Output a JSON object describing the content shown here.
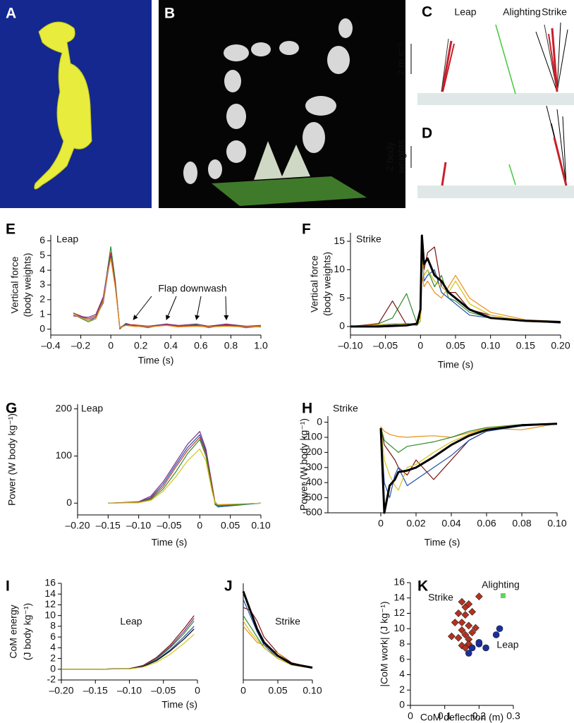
{
  "panels": [
    "A",
    "B",
    "C",
    "D",
    "E",
    "F",
    "G",
    "H",
    "I",
    "J",
    "K"
  ],
  "panel_c": {
    "labels": [
      "Leap",
      "Alighting",
      "Strike"
    ],
    "scale": "2 m s⁻¹"
  },
  "panel_d": {
    "scale": [
      "2 body",
      "weights"
    ]
  },
  "chart_data": [
    {
      "type": "line",
      "title": "Leap",
      "xlabel": "Time (s)",
      "ylabel": [
        "Vertical force",
        "(body weights)"
      ],
      "xlim": [
        -0.4,
        1.0
      ],
      "ylim": [
        -0.4,
        6.4
      ],
      "xticks": [
        {
          "value": -0.4,
          "label": "–0.4"
        },
        {
          "value": -0.2,
          "label": "–0.2"
        },
        0,
        0.2,
        0.4,
        0.6,
        0.8,
        {
          "value": 1.0,
          "label": "1.0"
        }
      ],
      "yticks": [
        0,
        1,
        2,
        3,
        4,
        5,
        6
      ],
      "annotation": {
        "text": "Flap downwash",
        "points": [
          [
            0.15,
            0.45
          ],
          [
            0.37,
            0.45
          ],
          [
            0.57,
            0.45
          ],
          [
            0.77,
            0.45
          ]
        ]
      },
      "x": [
        -0.25,
        -0.15,
        -0.1,
        -0.05,
        -0.02,
        0,
        0.03,
        0.06,
        0.1,
        0.15,
        0.25,
        0.37,
        0.45,
        0.57,
        0.65,
        0.77,
        0.9,
        1.0
      ],
      "series": [
        {
          "color": "#1f4fa8",
          "values": [
            1.1,
            0.6,
            0.8,
            1.8,
            3.8,
            4.9,
            3.0,
            0.1,
            0.35,
            0.2,
            0.15,
            0.3,
            0.15,
            0.25,
            0.15,
            0.25,
            0.15,
            0.2
          ]
        },
        {
          "color": "#2e8b2e",
          "values": [
            1.0,
            0.5,
            0.7,
            2.0,
            4.2,
            5.6,
            3.3,
            0.0,
            0.4,
            0.25,
            0.1,
            0.35,
            0.2,
            0.3,
            0.1,
            0.3,
            0.2,
            0.15
          ]
        },
        {
          "color": "#c0392b",
          "values": [
            1.1,
            0.7,
            0.9,
            2.1,
            4.0,
            5.2,
            3.1,
            0.05,
            0.3,
            0.3,
            0.2,
            0.3,
            0.2,
            0.2,
            0.2,
            0.3,
            0.1,
            0.2
          ]
        },
        {
          "color": "#7b2d8b",
          "values": [
            0.9,
            0.8,
            1.0,
            2.2,
            4.1,
            5.0,
            2.9,
            0.1,
            0.3,
            0.2,
            0.2,
            0.35,
            0.25,
            0.35,
            0.2,
            0.35,
            0.2,
            0.25
          ]
        },
        {
          "color": "#e8901a",
          "values": [
            1.0,
            0.6,
            0.7,
            1.9,
            3.9,
            4.8,
            2.8,
            0.1,
            0.25,
            0.2,
            0.15,
            0.25,
            0.15,
            0.2,
            0.15,
            0.2,
            0.15,
            0.2
          ]
        }
      ]
    },
    {
      "type": "line",
      "title": "Strike",
      "xlabel": "Time (s)",
      "ylabel": [
        "Vertical force",
        "(body weights)"
      ],
      "xlim": [
        -0.1,
        0.2
      ],
      "ylim": [
        -1.5,
        16.5
      ],
      "xticks": [
        {
          "value": -0.1,
          "label": "–0.10"
        },
        {
          "value": -0.05,
          "label": "–0.05"
        },
        0,
        0.05,
        {
          "value": 0.1,
          "label": "0.10"
        },
        0.15,
        {
          "value": 0.2,
          "label": "0.20"
        }
      ],
      "yticks": [
        0,
        5,
        10,
        15
      ],
      "x": [
        -0.1,
        -0.06,
        -0.04,
        -0.02,
        -0.005,
        0,
        0.002,
        0.005,
        0.01,
        0.02,
        0.03,
        0.04,
        0.05,
        0.07,
        0.1,
        0.15,
        0.2
      ],
      "series": [
        {
          "color": "#2e8b2e",
          "values": [
            0,
            0.5,
            1.5,
            5.8,
            0.5,
            2,
            14,
            9,
            10,
            7,
            9,
            5,
            4.5,
            2.5,
            1.5,
            1,
            0.7
          ]
        },
        {
          "color": "#7a1010",
          "values": [
            0,
            0.5,
            4.5,
            0.3,
            0.3,
            2,
            15,
            10,
            13,
            14,
            7,
            6,
            6,
            3,
            2,
            1,
            0.8
          ]
        },
        {
          "color": "#e8901a",
          "values": [
            0,
            0.3,
            0.5,
            0.5,
            0.5,
            1,
            9,
            7,
            8,
            6,
            5,
            7,
            9,
            5,
            2.5,
            1.2,
            0.9
          ]
        },
        {
          "color": "#1f4fa8",
          "values": [
            0,
            0.2,
            0.3,
            0.5,
            0.2,
            1,
            13,
            8,
            9,
            10,
            6,
            5,
            4,
            2,
            1.5,
            1,
            0.6
          ]
        },
        {
          "color": "#d4c21a",
          "values": [
            0,
            0.3,
            0.5,
            0.4,
            0.3,
            1,
            12,
            9,
            10,
            8,
            7,
            6,
            8,
            4,
            2,
            1,
            0.7
          ]
        },
        {
          "color": "#000000",
          "linewidth": 3,
          "values": [
            0,
            0,
            0.1,
            0.2,
            0.5,
            3,
            16,
            11,
            12,
            9,
            8,
            6,
            5,
            3,
            1.5,
            1,
            0.8
          ]
        }
      ]
    },
    {
      "type": "line",
      "title": "Leap",
      "xlabel": "Time (s)",
      "ylabel": [
        "Power (W body kg⁻¹)"
      ],
      "xlim": [
        -0.2,
        0.1
      ],
      "ylim": [
        -25,
        210
      ],
      "xticks": [
        {
          "value": -0.2,
          "label": "–0.20"
        },
        {
          "value": -0.15,
          "label": "–0.15"
        },
        {
          "value": -0.1,
          "label": "–0.10"
        },
        {
          "value": -0.05,
          "label": "–0.05"
        },
        0,
        0.05,
        {
          "value": 0.1,
          "label": "0.10"
        }
      ],
      "yticks": [
        0,
        100,
        200
      ],
      "x": [
        -0.15,
        -0.1,
        -0.08,
        -0.06,
        -0.04,
        -0.02,
        0,
        0.01,
        0.02,
        0.025,
        0.03,
        0.1
      ],
      "series": [
        {
          "color": "#7b2d8b",
          "values": [
            0,
            3,
            15,
            45,
            85,
            125,
            152,
            115,
            40,
            0,
            -5,
            0
          ]
        },
        {
          "color": "#1f4fa8",
          "values": [
            0,
            2,
            12,
            40,
            80,
            118,
            145,
            110,
            35,
            -3,
            -8,
            0
          ]
        },
        {
          "color": "#c0392b",
          "values": [
            0,
            2,
            10,
            35,
            75,
            112,
            140,
            105,
            38,
            2,
            -4,
            0
          ]
        },
        {
          "color": "#2e8b2e",
          "values": [
            0,
            1,
            8,
            30,
            65,
            105,
            135,
            100,
            30,
            -2,
            -6,
            0
          ]
        },
        {
          "color": "#d4c21a",
          "values": [
            0,
            1,
            6,
            25,
            55,
            90,
            115,
            90,
            25,
            0,
            -3,
            0
          ]
        }
      ]
    },
    {
      "type": "line",
      "title": "Strike",
      "xlabel": "Time (s)",
      "ylabel": [
        "Power (W body kg⁻¹)"
      ],
      "xlim": [
        -0.03,
        0.1
      ],
      "ylim": [
        -600,
        40
      ],
      "xticks": [
        0,
        0.02,
        0.04,
        0.06,
        0.08,
        {
          "value": 0.1,
          "label": "0.10"
        }
      ],
      "yticks": [
        0,
        -100,
        -200,
        -300,
        -400,
        -500,
        -600
      ],
      "x": [
        0,
        0.002,
        0.005,
        0.008,
        0.01,
        0.015,
        0.02,
        0.03,
        0.04,
        0.05,
        0.06,
        0.08,
        0.1
      ],
      "series": [
        {
          "color": "#e8901a",
          "values": [
            -30,
            -60,
            -80,
            -90,
            -95,
            -100,
            -95,
            -90,
            -100,
            -70,
            -40,
            -50,
            -10
          ]
        },
        {
          "color": "#7a1010",
          "values": [
            -30,
            -150,
            -200,
            -250,
            -300,
            -350,
            -250,
            -380,
            -250,
            -120,
            -60,
            -20,
            -10
          ]
        },
        {
          "color": "#1f4fa8",
          "values": [
            -30,
            -400,
            -500,
            -350,
            -300,
            -420,
            -380,
            -300,
            -220,
            -120,
            -60,
            -25,
            -10
          ]
        },
        {
          "color": "#2e8b2e",
          "values": [
            -30,
            -120,
            -150,
            -180,
            -200,
            -160,
            -150,
            -130,
            -100,
            -60,
            -35,
            -15,
            -8
          ]
        },
        {
          "color": "#d4c21a",
          "values": [
            -30,
            -250,
            -350,
            -420,
            -450,
            -300,
            -280,
            -200,
            -130,
            -80,
            -40,
            -18,
            -8
          ]
        },
        {
          "color": "#000000",
          "linewidth": 3,
          "values": [
            -40,
            -600,
            -420,
            -380,
            -330,
            -320,
            -300,
            -230,
            -150,
            -90,
            -50,
            -20,
            -10
          ]
        }
      ]
    },
    {
      "type": "line",
      "title": "Leap",
      "xlabel": "Time (s)",
      "ylabel": [
        "CoM energy",
        "(J body kg⁻¹)"
      ],
      "xlim": [
        -0.2,
        0
      ],
      "ylim": [
        -2,
        16
      ],
      "xticks": [
        {
          "value": -0.2,
          "label": "–0.20"
        },
        {
          "value": -0.15,
          "label": "–0.15"
        },
        {
          "value": -0.1,
          "label": "–0.10"
        },
        {
          "value": -0.05,
          "label": "–0.05"
        },
        0
      ],
      "yticks": [
        -2,
        0,
        2,
        4,
        6,
        8,
        10,
        12,
        14,
        16
      ],
      "x": [
        -0.2,
        -0.15,
        -0.1,
        -0.08,
        -0.06,
        -0.04,
        -0.02,
        -0.005
      ],
      "series": [
        {
          "color": "#7a1010",
          "values": [
            0,
            0,
            0.1,
            0.7,
            2.2,
            4.5,
            7.5,
            10
          ]
        },
        {
          "color": "#7b2d8b",
          "values": [
            0,
            0,
            0.1,
            0.6,
            2,
            4.2,
            7,
            9.5
          ]
        },
        {
          "color": "#2e8b2e",
          "values": [
            0,
            0,
            0.1,
            0.5,
            1.9,
            4,
            6.6,
            9
          ]
        },
        {
          "color": "#1f4fa8",
          "values": [
            0,
            0,
            0.1,
            0.5,
            1.7,
            3.6,
            6,
            8
          ]
        },
        {
          "color": "#000000",
          "values": [
            0,
            0,
            0.1,
            0.5,
            1.6,
            3.4,
            5.6,
            7.5
          ]
        },
        {
          "color": "#d4c21a",
          "values": [
            0,
            0,
            0.05,
            0.4,
            1.3,
            2.8,
            4.8,
            6.5
          ]
        }
      ]
    },
    {
      "type": "line",
      "title": "Strike",
      "xlim": [
        0,
        0.1
      ],
      "ylim": [
        -2,
        16
      ],
      "xticks": [
        0,
        0.05,
        {
          "value": 0.1,
          "label": "0.10"
        }
      ],
      "x": [
        0,
        0.01,
        0.02,
        0.03,
        0.05,
        0.07,
        0.1
      ],
      "series": [
        {
          "color": "#7a1010",
          "values": [
            11.5,
            11,
            9,
            6,
            3,
            1.2,
            0.3
          ]
        },
        {
          "color": "#e8901a",
          "values": [
            8,
            6.5,
            5,
            4.5,
            3,
            1,
            0.3
          ]
        },
        {
          "color": "#1f4fa8",
          "values": [
            13,
            10,
            7,
            4.5,
            2,
            0.8,
            0.2
          ]
        },
        {
          "color": "#2e8b2e",
          "values": [
            10,
            8,
            6,
            4,
            2,
            0.8,
            0.2
          ]
        },
        {
          "color": "#d4c21a",
          "values": [
            9,
            7,
            5.5,
            4,
            2,
            0.8,
            0.2
          ]
        },
        {
          "color": "#000000",
          "linewidth": 3,
          "values": [
            14.5,
            11,
            7.5,
            5,
            2.5,
            1,
            0.3
          ]
        }
      ]
    },
    {
      "type": "scatter",
      "xlabel": "CoM deflection (m)",
      "ylabel": [
        "|CoM work| (J kg⁻¹)"
      ],
      "xlim": [
        0,
        0.3
      ],
      "ylim": [
        0,
        16
      ],
      "xticks": [
        0,
        0.1,
        0.2,
        0.3
      ],
      "yticks": [
        0,
        2,
        4,
        6,
        8,
        10,
        12,
        14,
        16
      ],
      "series": [
        {
          "name": "Strike",
          "color": "#b5321e",
          "marker": "diamond",
          "x": [
            0.15,
            0.16,
            0.17,
            0.14,
            0.16,
            0.18,
            0.15,
            0.17,
            0.13,
            0.19,
            0.15,
            0.16,
            0.18,
            0.14,
            0.17,
            0.12,
            0.2,
            0.15,
            0.17,
            0.16
          ],
          "values": [
            13.5,
            12.8,
            13.2,
            12,
            11.8,
            12.2,
            10.8,
            10.4,
            10.8,
            10.1,
            9.8,
            9.2,
            9.5,
            8.8,
            8.6,
            9.0,
            14.2,
            7.8,
            8.0,
            7.5
          ]
        },
        {
          "name": "Leap",
          "color": "#1a2f9c",
          "marker": "circle",
          "x": [
            0.18,
            0.2,
            0.22,
            0.25,
            0.26,
            0.17,
            0.2
          ],
          "values": [
            7.5,
            8.0,
            7.5,
            9.2,
            10.0,
            6.8,
            8.2
          ]
        },
        {
          "name": "Alighting",
          "color": "#5fd35f",
          "marker": "square",
          "x": [
            0.27
          ],
          "values": [
            14.3
          ]
        }
      ]
    }
  ]
}
